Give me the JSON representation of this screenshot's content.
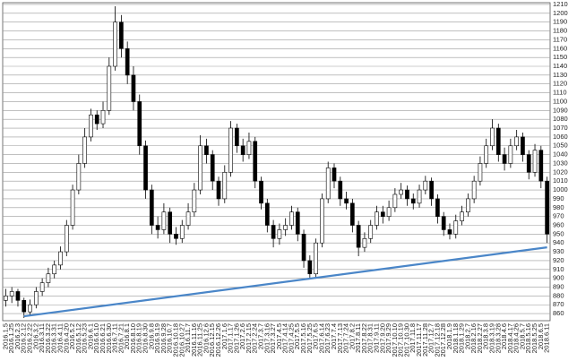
{
  "chart_data": {
    "type": "candlestick",
    "categories": [
      "2016.1.5",
      "2016.1.25",
      "2016.2.3",
      "2016.2.12",
      "2016.2.22",
      "2016.3.2",
      "2016.3.11",
      "2016.3.22",
      "2016.3.31",
      "2016.4.11",
      "2016.4.20",
      "2016.5.2",
      "2016.5.12",
      "2016.5.23",
      "2016.6.1",
      "2016.6.10",
      "2016.6.21",
      "2016.6.30",
      "2016.7.11",
      "2016.7.21",
      "2016.8.1",
      "2016.8.10",
      "2016.8.19",
      "2016.8.30",
      "2016.9.8",
      "2016.9.19",
      "2016.9.28",
      "2016.10.7",
      "2016.10.18",
      "2016.10.27",
      "2016.11.7",
      "2016.11.16",
      "2016.11.25",
      "2016.12.6",
      "2016.12.15",
      "2016.12.26",
      "2017.1.6",
      "2017.1.17",
      "2017.1.26",
      "2017.2.6",
      "2017.2.15",
      "2017.2.24",
      "2017.3.7",
      "2017.3.16",
      "2017.3.27",
      "2017.4.5",
      "2017.4.14",
      "2017.4.25",
      "2017.5.5",
      "2017.5.16",
      "2017.5.25",
      "2017.6.5",
      "2017.6.14",
      "2017.6.23",
      "2017.7.4",
      "2017.7.13",
      "2017.7.24",
      "2017.8.2",
      "2017.8.11",
      "2017.8.22",
      "2017.8.31",
      "2017.9.11",
      "2017.9.20",
      "2017.9.29",
      "2017.10.10",
      "2017.10.19",
      "2017.10.30",
      "2017.11.8",
      "2017.11.17",
      "2017.11.28",
      "2017.12.7",
      "2017.12.18",
      "2017.12.28",
      "2018.1.9",
      "2018.1.18",
      "2018.1.29",
      "2018.2.7",
      "2018.2.16",
      "2018.2.27",
      "2018.3.8",
      "2018.3.19",
      "2018.3.28",
      "2018.4.6",
      "2018.4.17",
      "2018.4.26",
      "2018.5.7",
      "2018.5.16",
      "2018.5.25",
      "2018.6.5",
      "2018.6.11"
    ],
    "open": [
      875,
      880,
      885,
      875,
      862,
      870,
      885,
      895,
      905,
      915,
      930,
      960,
      1000,
      1030,
      1060,
      1085,
      1075,
      1090,
      1140,
      1190,
      1160,
      1130,
      1100,
      1050,
      1000,
      960,
      955,
      975,
      950,
      945,
      960,
      975,
      1000,
      1050,
      1040,
      1010,
      990,
      1020,
      1070,
      1050,
      1040,
      1055,
      1010,
      985,
      960,
      945,
      955,
      960,
      975,
      950,
      920,
      905,
      940,
      990,
      1025,
      1010,
      990,
      985,
      960,
      935,
      945,
      960,
      975,
      970,
      980,
      995,
      1000,
      990,
      985,
      1000,
      1010,
      990,
      970,
      955,
      950,
      965,
      975,
      990,
      1010,
      1030,
      1050,
      1070,
      1040,
      1030,
      1050,
      1060,
      1040,
      1020,
      1045,
      1010
    ],
    "high": [
      888,
      890,
      888,
      878,
      876,
      890,
      900,
      912,
      920,
      936,
      966,
      1006,
      1040,
      1070,
      1092,
      1090,
      1100,
      1150,
      1208,
      1198,
      1168,
      1140,
      1108,
      1056,
      1006,
      970,
      985,
      980,
      958,
      966,
      985,
      1008,
      1062,
      1058,
      1045,
      1015,
      1028,
      1078,
      1075,
      1058,
      1065,
      1060,
      1015,
      990,
      966,
      962,
      968,
      982,
      980,
      955,
      926,
      945,
      996,
      1032,
      1030,
      1015,
      998,
      990,
      965,
      952,
      966,
      982,
      982,
      988,
      1002,
      1008,
      1005,
      996,
      1006,
      1016,
      1014,
      995,
      975,
      962,
      972,
      982,
      996,
      1016,
      1038,
      1058,
      1080,
      1075,
      1048,
      1058,
      1068,
      1065,
      1045,
      1052,
      1050,
      1015
    ],
    "low": [
      868,
      872,
      868,
      855,
      858,
      866,
      880,
      890,
      900,
      910,
      925,
      955,
      995,
      1025,
      1055,
      1068,
      1070,
      1085,
      1135,
      1150,
      1120,
      1090,
      1040,
      990,
      950,
      945,
      950,
      940,
      938,
      940,
      955,
      970,
      995,
      1030,
      1000,
      982,
      985,
      1015,
      1042,
      1032,
      1035,
      1002,
      978,
      952,
      935,
      938,
      948,
      955,
      942,
      912,
      900,
      900,
      935,
      985,
      1002,
      982,
      978,
      952,
      925,
      930,
      940,
      955,
      962,
      965,
      975,
      990,
      982,
      978,
      980,
      995,
      982,
      962,
      948,
      944,
      945,
      960,
      970,
      985,
      1005,
      1025,
      1045,
      1032,
      1022,
      1025,
      1045,
      1032,
      1012,
      1015,
      1002,
      940
    ],
    "close": [
      880,
      885,
      875,
      862,
      870,
      885,
      895,
      905,
      915,
      930,
      960,
      1000,
      1030,
      1060,
      1085,
      1075,
      1090,
      1140,
      1190,
      1160,
      1130,
      1100,
      1050,
      1000,
      960,
      955,
      975,
      950,
      945,
      960,
      975,
      1000,
      1050,
      1040,
      1010,
      990,
      1020,
      1070,
      1050,
      1040,
      1055,
      1010,
      985,
      960,
      945,
      955,
      960,
      975,
      950,
      920,
      905,
      940,
      990,
      1025,
      1010,
      990,
      985,
      960,
      935,
      945,
      960,
      975,
      970,
      980,
      995,
      1000,
      990,
      985,
      1000,
      1010,
      990,
      970,
      955,
      950,
      965,
      975,
      990,
      1010,
      1030,
      1050,
      1070,
      1040,
      1030,
      1050,
      1060,
      1040,
      1020,
      1045,
      1010,
      950
    ],
    "up_color": "#ffffff",
    "down_color": "#000000",
    "ylim": [
      852,
      1212
    ],
    "yticks": [
      860,
      870,
      880,
      890,
      900,
      910,
      920,
      930,
      940,
      950,
      960,
      970,
      980,
      990,
      1000,
      1010,
      1020,
      1030,
      1040,
      1050,
      1060,
      1070,
      1080,
      1090,
      1100,
      1110,
      1120,
      1130,
      1140,
      1150,
      1160,
      1170,
      1180,
      1190,
      1200,
      1210
    ],
    "grid": true,
    "trendline": {
      "color": "#4a86c8",
      "x": [
        "2016.2.12",
        "2018.6.11"
      ],
      "values": [
        857,
        935
      ]
    }
  }
}
